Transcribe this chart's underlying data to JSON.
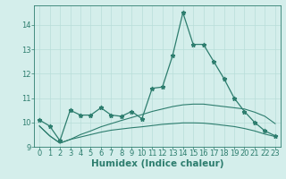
{
  "xlabel": "Humidex (Indice chaleur)",
  "x_values": [
    0,
    1,
    2,
    3,
    4,
    5,
    6,
    7,
    8,
    9,
    10,
    11,
    12,
    13,
    14,
    15,
    16,
    17,
    18,
    19,
    20,
    21,
    22,
    23
  ],
  "line1_y": [
    10.1,
    9.85,
    9.25,
    10.5,
    10.3,
    10.3,
    10.6,
    10.3,
    10.25,
    10.45,
    10.15,
    11.4,
    11.45,
    12.75,
    14.5,
    13.2,
    13.2,
    12.5,
    11.8,
    11.0,
    10.45,
    10.0,
    9.65,
    9.45
  ],
  "line2_y": [
    9.85,
    9.45,
    9.15,
    9.3,
    9.4,
    9.5,
    9.6,
    9.68,
    9.73,
    9.78,
    9.82,
    9.87,
    9.92,
    9.95,
    9.98,
    9.98,
    9.97,
    9.93,
    9.88,
    9.83,
    9.75,
    9.65,
    9.52,
    9.42
  ],
  "line3_y": [
    9.85,
    9.45,
    9.15,
    9.3,
    9.5,
    9.65,
    9.82,
    9.95,
    10.08,
    10.2,
    10.32,
    10.45,
    10.55,
    10.65,
    10.72,
    10.75,
    10.75,
    10.7,
    10.65,
    10.6,
    10.55,
    10.42,
    10.25,
    9.95
  ],
  "ylim": [
    9.0,
    14.8
  ],
  "xlim": [
    -0.5,
    23.5
  ],
  "yticks": [
    9,
    10,
    11,
    12,
    13,
    14
  ],
  "xticks": [
    0,
    1,
    2,
    3,
    4,
    5,
    6,
    7,
    8,
    9,
    10,
    11,
    12,
    13,
    14,
    15,
    16,
    17,
    18,
    19,
    20,
    21,
    22,
    23
  ],
  "line_color": "#2d7d6e",
  "bg_color": "#d4eeeb",
  "grid_color": "#b8ddd9",
  "tick_fontsize": 6,
  "xlabel_fontsize": 7.5
}
